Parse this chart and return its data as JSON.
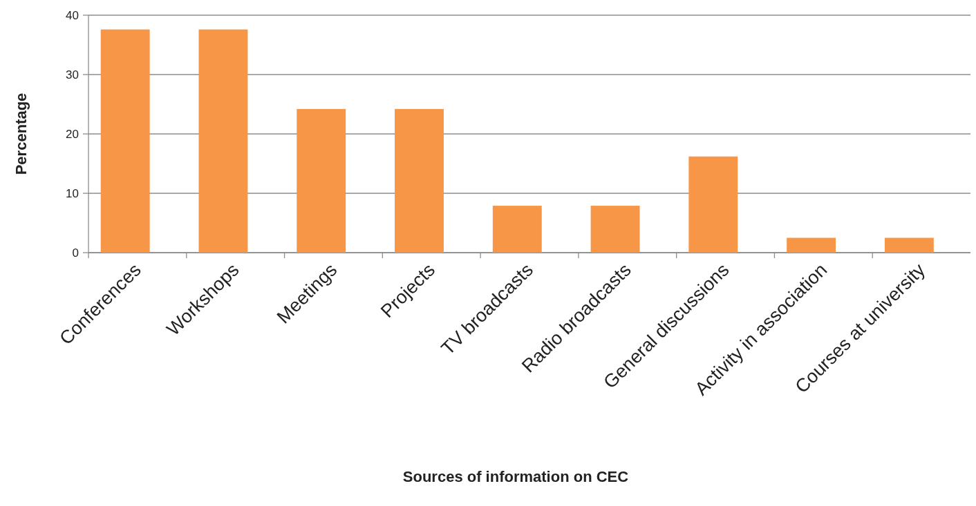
{
  "chart_data": {
    "type": "bar",
    "xlabel": "Sources of information on CEC",
    "ylabel": "Percentage",
    "categories": [
      "Conferences",
      "Workshops",
      "Meetings",
      "Projects",
      "TV broadcasts",
      "Radio broadcasts",
      "General discussions",
      "Activity in association",
      "Courses at university"
    ],
    "values": [
      37.6,
      37.6,
      24.2,
      24.2,
      7.9,
      7.9,
      16.2,
      2.5,
      2.5
    ],
    "color": "#f79646",
    "ylim": [
      0,
      40
    ],
    "yticks": [
      0,
      10,
      20,
      30,
      40
    ],
    "grid": "y"
  }
}
